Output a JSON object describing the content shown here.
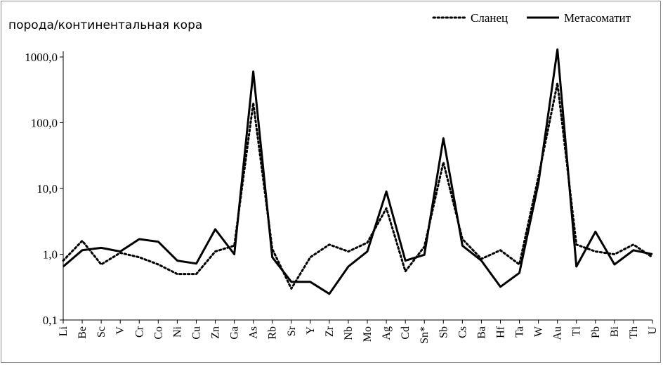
{
  "chart_data": {
    "type": "line",
    "title": "",
    "ylabel": "порода/континентальная кора",
    "xlabel": "",
    "y_scale": "log",
    "ylim": [
      0.1,
      1000
    ],
    "y_ticks": [
      "0,1",
      "1,0",
      "10,0",
      "100,0",
      "1000,0"
    ],
    "y_tick_values": [
      0.1,
      1,
      10,
      100,
      1000
    ],
    "grid": false,
    "legend_position": "top-right",
    "categories": [
      "Li",
      "Be",
      "Sc",
      "V",
      "Cr",
      "Co",
      "Ni",
      "Cu",
      "Zn",
      "Ga",
      "As",
      "Rb",
      "Sr",
      "Y",
      "Zr",
      "Nb",
      "Mo",
      "Ag",
      "Cd",
      "Sn*",
      "Sb",
      "Cs",
      "Ba",
      "Hf",
      "Ta",
      "W",
      "Au",
      "Tl",
      "Pb",
      "Bi",
      "Th",
      "U"
    ],
    "series": [
      {
        "name": "Сланец",
        "style": "dotted",
        "color": "#000000",
        "values": [
          0.8,
          1.6,
          0.7,
          1.05,
          0.9,
          0.7,
          0.5,
          0.5,
          1.1,
          1.35,
          200,
          1.2,
          0.3,
          0.9,
          1.4,
          1.1,
          1.5,
          5.0,
          0.55,
          1.3,
          25,
          1.7,
          0.85,
          1.15,
          0.7,
          15,
          400,
          1.4,
          1.1,
          1.0,
          1.4,
          0.9
        ]
      },
      {
        "name": "Метасоматит",
        "style": "solid",
        "color": "#000000",
        "values": [
          0.65,
          1.15,
          1.25,
          1.1,
          1.7,
          1.55,
          0.8,
          0.72,
          2.4,
          1.0,
          600,
          0.9,
          0.38,
          0.38,
          0.25,
          0.65,
          1.1,
          9.0,
          0.8,
          0.98,
          58,
          1.35,
          0.8,
          0.32,
          0.52,
          12,
          1300,
          0.65,
          2.2,
          0.7,
          1.15,
          1.0
        ]
      }
    ]
  }
}
